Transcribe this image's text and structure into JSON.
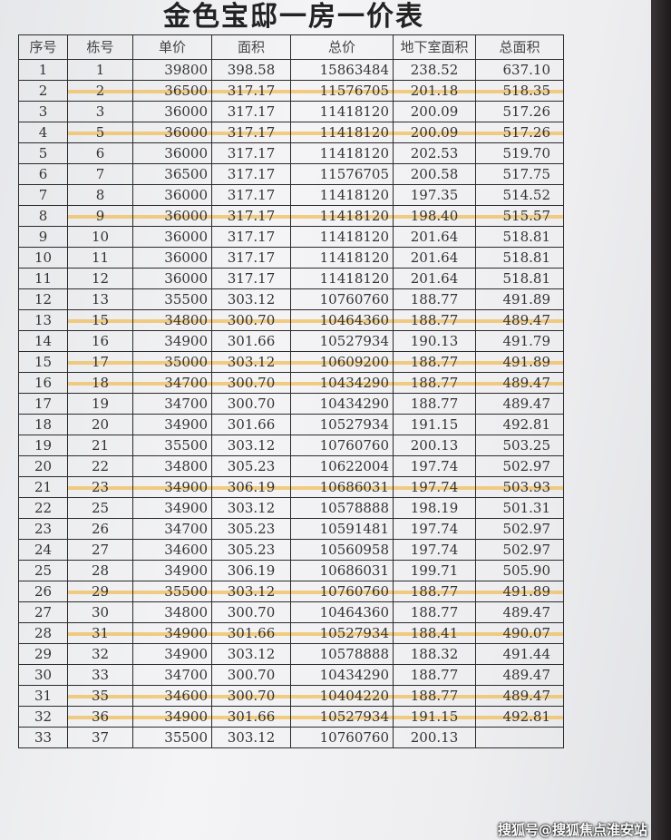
{
  "title": "金色宝邸一房一价表",
  "highlight_color": "#f0be5a",
  "columns": [
    "序号",
    "栋号",
    "单价",
    "面积",
    "总价",
    "地下室面积",
    "总面积"
  ],
  "rows": [
    {
      "seq": "1",
      "bldg": "1",
      "unit_price": "39800",
      "area": "398.58",
      "total_price": "15863484",
      "basement": "238.52",
      "total_area": "637.10",
      "highlighted": false
    },
    {
      "seq": "2",
      "bldg": "2",
      "unit_price": "36500",
      "area": "317.17",
      "total_price": "11576705",
      "basement": "201.18",
      "total_area": "518.35",
      "highlighted": true
    },
    {
      "seq": "3",
      "bldg": "3",
      "unit_price": "36000",
      "area": "317.17",
      "total_price": "11418120",
      "basement": "200.09",
      "total_area": "517.26",
      "highlighted": false
    },
    {
      "seq": "4",
      "bldg": "5",
      "unit_price": "36000",
      "area": "317.17",
      "total_price": "11418120",
      "basement": "200.09",
      "total_area": "517.26",
      "highlighted": true
    },
    {
      "seq": "5",
      "bldg": "6",
      "unit_price": "36000",
      "area": "317.17",
      "total_price": "11418120",
      "basement": "202.53",
      "total_area": "519.70",
      "highlighted": false
    },
    {
      "seq": "6",
      "bldg": "7",
      "unit_price": "36500",
      "area": "317.17",
      "total_price": "11576705",
      "basement": "200.58",
      "total_area": "517.75",
      "highlighted": false
    },
    {
      "seq": "7",
      "bldg": "8",
      "unit_price": "36000",
      "area": "317.17",
      "total_price": "11418120",
      "basement": "197.35",
      "total_area": "514.52",
      "highlighted": false
    },
    {
      "seq": "8",
      "bldg": "9",
      "unit_price": "36000",
      "area": "317.17",
      "total_price": "11418120",
      "basement": "198.40",
      "total_area": "515.57",
      "highlighted": true
    },
    {
      "seq": "9",
      "bldg": "10",
      "unit_price": "36000",
      "area": "317.17",
      "total_price": "11418120",
      "basement": "201.64",
      "total_area": "518.81",
      "highlighted": false
    },
    {
      "seq": "10",
      "bldg": "11",
      "unit_price": "36000",
      "area": "317.17",
      "total_price": "11418120",
      "basement": "201.64",
      "total_area": "518.81",
      "highlighted": false
    },
    {
      "seq": "11",
      "bldg": "12",
      "unit_price": "36000",
      "area": "317.17",
      "total_price": "11418120",
      "basement": "201.64",
      "total_area": "518.81",
      "highlighted": false
    },
    {
      "seq": "12",
      "bldg": "13",
      "unit_price": "35500",
      "area": "303.12",
      "total_price": "10760760",
      "basement": "188.77",
      "total_area": "491.89",
      "highlighted": false
    },
    {
      "seq": "13",
      "bldg": "15",
      "unit_price": "34800",
      "area": "300.70",
      "total_price": "10464360",
      "basement": "188.77",
      "total_area": "489.47",
      "highlighted": true
    },
    {
      "seq": "14",
      "bldg": "16",
      "unit_price": "34900",
      "area": "301.66",
      "total_price": "10527934",
      "basement": "190.13",
      "total_area": "491.79",
      "highlighted": false
    },
    {
      "seq": "15",
      "bldg": "17",
      "unit_price": "35000",
      "area": "303.12",
      "total_price": "10609200",
      "basement": "188.77",
      "total_area": "491.89",
      "highlighted": true
    },
    {
      "seq": "16",
      "bldg": "18",
      "unit_price": "34700",
      "area": "300.70",
      "total_price": "10434290",
      "basement": "188.77",
      "total_area": "489.47",
      "highlighted": true
    },
    {
      "seq": "17",
      "bldg": "19",
      "unit_price": "34700",
      "area": "300.70",
      "total_price": "10434290",
      "basement": "188.77",
      "total_area": "489.47",
      "highlighted": false
    },
    {
      "seq": "18",
      "bldg": "20",
      "unit_price": "34900",
      "area": "301.66",
      "total_price": "10527934",
      "basement": "191.15",
      "total_area": "492.81",
      "highlighted": false
    },
    {
      "seq": "19",
      "bldg": "21",
      "unit_price": "35500",
      "area": "303.12",
      "total_price": "10760760",
      "basement": "200.13",
      "total_area": "503.25",
      "highlighted": false
    },
    {
      "seq": "20",
      "bldg": "22",
      "unit_price": "34800",
      "area": "305.23",
      "total_price": "10622004",
      "basement": "197.74",
      "total_area": "502.97",
      "highlighted": false
    },
    {
      "seq": "21",
      "bldg": "23",
      "unit_price": "34900",
      "area": "306.19",
      "total_price": "10686031",
      "basement": "197.74",
      "total_area": "503.93",
      "highlighted": true
    },
    {
      "seq": "22",
      "bldg": "25",
      "unit_price": "34900",
      "area": "303.12",
      "total_price": "10578888",
      "basement": "198.19",
      "total_area": "501.31",
      "highlighted": false
    },
    {
      "seq": "23",
      "bldg": "26",
      "unit_price": "34700",
      "area": "305.23",
      "total_price": "10591481",
      "basement": "197.74",
      "total_area": "502.97",
      "highlighted": false
    },
    {
      "seq": "24",
      "bldg": "27",
      "unit_price": "34600",
      "area": "305.23",
      "total_price": "10560958",
      "basement": "197.74",
      "total_area": "502.97",
      "highlighted": false
    },
    {
      "seq": "25",
      "bldg": "28",
      "unit_price": "34900",
      "area": "306.19",
      "total_price": "10686031",
      "basement": "199.71",
      "total_area": "505.90",
      "highlighted": false
    },
    {
      "seq": "26",
      "bldg": "29",
      "unit_price": "35500",
      "area": "303.12",
      "total_price": "10760760",
      "basement": "188.77",
      "total_area": "491.89",
      "highlighted": true
    },
    {
      "seq": "27",
      "bldg": "30",
      "unit_price": "34800",
      "area": "300.70",
      "total_price": "10464360",
      "basement": "188.77",
      "total_area": "489.47",
      "highlighted": false
    },
    {
      "seq": "28",
      "bldg": "31",
      "unit_price": "34900",
      "area": "301.66",
      "total_price": "10527934",
      "basement": "188.41",
      "total_area": "490.07",
      "highlighted": true
    },
    {
      "seq": "29",
      "bldg": "32",
      "unit_price": "34900",
      "area": "303.12",
      "total_price": "10578888",
      "basement": "188.32",
      "total_area": "491.44",
      "highlighted": false
    },
    {
      "seq": "30",
      "bldg": "33",
      "unit_price": "34700",
      "area": "300.70",
      "total_price": "10434290",
      "basement": "188.77",
      "total_area": "489.47",
      "highlighted": false
    },
    {
      "seq": "31",
      "bldg": "35",
      "unit_price": "34600",
      "area": "300.70",
      "total_price": "10404220",
      "basement": "188.77",
      "total_area": "489.47",
      "highlighted": true
    },
    {
      "seq": "32",
      "bldg": "36",
      "unit_price": "34900",
      "area": "301.66",
      "total_price": "10527934",
      "basement": "191.15",
      "total_area": "492.81",
      "highlighted": true
    },
    {
      "seq": "33",
      "bldg": "37",
      "unit_price": "35500",
      "area": "303.12",
      "total_price": "10760760",
      "basement": "200.13",
      "total_area": "",
      "highlighted": false
    }
  ],
  "watermark": "搜狐号@搜狐焦点淮安站"
}
